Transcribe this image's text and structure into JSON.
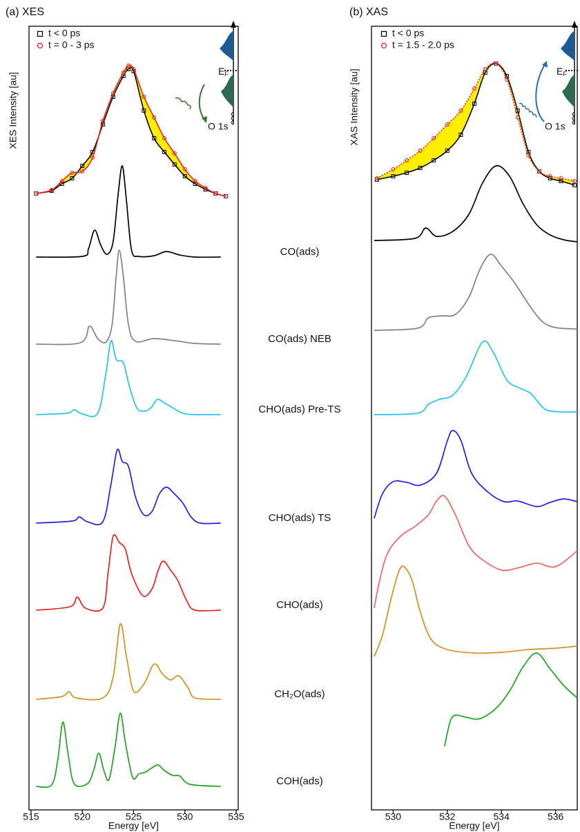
{
  "chart_data": [
    {
      "type": "line",
      "title": "(a) XES",
      "y_label": "XES Intensity [au]",
      "x_label": "Energy [eV]",
      "xlim": [
        514.8,
        535.2
      ],
      "xticks": [
        515,
        520,
        525,
        530,
        535
      ],
      "ylim": [
        10,
        1144
      ],
      "legend": "upper left",
      "highlight_color": "#ffee00",
      "inset": {
        "fermi": "E",
        "fermi_sub": "F",
        "core": "O 1s",
        "arrow_color": "#3f6e3a"
      },
      "series": [
        {
          "name": "t < 0 ps",
          "color": "#000000",
          "marker": "square",
          "x": [
            515.5,
            517,
            518,
            519,
            520,
            521,
            522,
            523,
            524,
            524.5,
            525,
            526,
            527,
            528,
            529,
            530,
            531,
            532,
            533,
            534
          ],
          "values": [
            902,
            906,
            916,
            924,
            942,
            962,
            1002,
            1042,
            1072,
            1082,
            1079,
            1022,
            982,
            962,
            944,
            927,
            916,
            908,
            902,
            898
          ]
        },
        {
          "name": "t = 0 - 3 ps",
          "color": "#e8231f",
          "marker": "circle",
          "x": [
            515.5,
            517,
            518,
            519,
            520,
            521,
            522,
            523,
            524,
            524.5,
            525,
            526,
            527,
            528,
            529,
            530,
            531,
            532,
            533,
            534
          ],
          "values": [
            902,
            907,
            920,
            932,
            934,
            954,
            1007,
            1047,
            1077,
            1087,
            1082,
            1042,
            1012,
            982,
            960,
            937,
            920,
            910,
            902,
            898
          ]
        },
        {
          "name": "CO(ads)",
          "color": "#000000",
          "x": [
            515.5,
            520,
            520.6,
            521.2,
            521.8,
            522.4,
            523,
            523.5,
            523.9,
            524.3,
            524.8,
            525.5,
            527,
            528.2,
            529.5,
            531,
            533.5
          ],
          "values": [
            810,
            811,
            822,
            849,
            827,
            814,
            832,
            902,
            942,
            892,
            820,
            811,
            812,
            818,
            813,
            810,
            810
          ]
        },
        {
          "name": "CO(ads) NEB",
          "color": "#808080",
          "x": [
            515.5,
            519.8,
            520.7,
            521.5,
            522.3,
            522.9,
            523.3,
            523.6,
            524,
            524.5,
            525.2,
            527,
            529,
            531,
            533.5
          ],
          "values": [
            684,
            686,
            710,
            692,
            687,
            712,
            782,
            820,
            782,
            712,
            688,
            692,
            689,
            685,
            684
          ]
        },
        {
          "name": "CHO(ads) Pre-TS",
          "color": "#22c4ef",
          "x": [
            515.5,
            518.5,
            519.2,
            520,
            521.5,
            522.3,
            522.8,
            523.3,
            524,
            524.6,
            525.3,
            526,
            526.7,
            527.3,
            528,
            528.8,
            529.8,
            531,
            533.5
          ],
          "values": [
            582,
            584,
            589,
            583,
            584,
            642,
            689,
            662,
            657,
            622,
            592,
            587,
            592,
            604,
            599,
            592,
            584,
            582,
            582
          ]
        },
        {
          "name": "CHO(ads) TS",
          "color": "#1f1fe6",
          "x": [
            515.5,
            519,
            519.7,
            520.5,
            522,
            522.8,
            523.4,
            523.9,
            524.5,
            525.2,
            526,
            526.8,
            527.5,
            528.2,
            529,
            529.8,
            530.6,
            531.5,
            533.5
          ],
          "values": [
            425,
            428,
            434,
            427,
            427,
            482,
            531,
            514,
            507,
            462,
            437,
            442,
            467,
            477,
            467,
            454,
            434,
            425,
            425
          ]
        },
        {
          "name": "CHO(ads)",
          "color": "#f01d1d",
          "x": [
            515.5,
            518.8,
            519.5,
            520.3,
            522,
            522.5,
            523,
            523.6,
            524.2,
            524.8,
            525.9,
            526.8,
            527.4,
            527.9,
            528.6,
            529.3,
            530.2,
            531,
            533.5
          ],
          "values": [
            299,
            304,
            318,
            302,
            302,
            352,
            406,
            397,
            387,
            352,
            320,
            330,
            357,
            370,
            357,
            342,
            312,
            299,
            299
          ]
        },
        {
          "name": "CH₂O(ads)",
          "color": "#d2901e",
          "x": [
            515.5,
            518,
            518.7,
            519.4,
            522,
            523,
            523.7,
            524.3,
            525,
            526,
            527,
            527.8,
            528.6,
            529.4,
            530.3,
            531,
            533.5
          ],
          "values": [
            170,
            174,
            181,
            172,
            172,
            202,
            279,
            232,
            182,
            192,
            221,
            207,
            198,
            204,
            187,
            172,
            170
          ]
        },
        {
          "name": "COH(ads)",
          "color": "#1fa21f",
          "x": [
            515.5,
            517,
            517.6,
            518.1,
            518.6,
            519.2,
            520.5,
            521.1,
            521.6,
            522.1,
            522.6,
            523.2,
            523.7,
            524.2,
            524.9,
            525.5,
            526.2,
            526.9,
            527.4,
            528,
            528.8,
            529.5,
            530.5,
            533.5
          ],
          "values": [
            44,
            46,
            82,
            137,
            92,
            48,
            48,
            67,
            92,
            67,
            54,
            102,
            150,
            107,
            57,
            62,
            65,
            72,
            75,
            67,
            60,
            59,
            47,
            44
          ]
        }
      ]
    },
    {
      "type": "line",
      "title": "(b) XAS",
      "y_label": "XAS Intensity [au]",
      "x_label": "Energy [eV]",
      "xlim": [
        529.2,
        536.8
      ],
      "xticks": [
        530,
        532,
        534,
        536
      ],
      "ylim": [
        10,
        1144
      ],
      "legend": "upper left",
      "highlight_color": "#ffee00",
      "inset": {
        "fermi": "E",
        "fermi_sub": "F",
        "core": "O 1s",
        "arrow_color": "#2b6db3"
      },
      "series": [
        {
          "name": "t < 0 ps",
          "color": "#000000",
          "marker": "square",
          "x": [
            529.4,
            530,
            530.5,
            531,
            531.5,
            532,
            532.5,
            533,
            533.4,
            533.8,
            534.2,
            534.6,
            535,
            535.4,
            535.8,
            536.2,
            536.7
          ],
          "values": [
            922,
            927,
            932,
            939,
            950,
            964,
            987,
            1032,
            1077,
            1090,
            1072,
            1022,
            962,
            934,
            924,
            920,
            914
          ]
        },
        {
          "name": "t = 1.5 - 2.0 ps",
          "color": "#e8231f",
          "marker": "circle",
          "x": [
            529.4,
            530,
            530.5,
            531,
            531.5,
            532,
            532.5,
            533,
            533.4,
            533.8,
            534.2,
            534.6,
            535,
            535.4,
            535.8,
            536.2,
            536.7
          ],
          "values": [
            924,
            937,
            950,
            964,
            982,
            1002,
            1022,
            1054,
            1082,
            1090,
            1067,
            1012,
            957,
            934,
            927,
            924,
            920
          ]
        },
        {
          "color": "#000000",
          "x": [
            529.3,
            530.8,
            531.2,
            531.6,
            532.2,
            532.8,
            533.3,
            533.8,
            534.3,
            534.8,
            535.3,
            535.8,
            536.3,
            536.8
          ],
          "values": [
            834,
            837,
            852,
            840,
            847,
            872,
            917,
            942,
            927,
            887,
            857,
            842,
            835,
            832
          ]
        },
        {
          "color": "#808080",
          "x": [
            529.3,
            530.9,
            531.3,
            531.8,
            532.3,
            532.8,
            533.2,
            533.6,
            534,
            534.5,
            535,
            535.5,
            536,
            536.8
          ],
          "values": [
            704,
            707,
            722,
            725,
            727,
            752,
            792,
            814,
            797,
            772,
            742,
            717,
            708,
            706
          ]
        },
        {
          "color": "#22c4ef",
          "x": [
            529.3,
            530.9,
            531.3,
            531.7,
            532.2,
            532.7,
            533.3,
            533.7,
            534.2,
            534.7,
            535.1,
            535.6,
            536.2,
            536.8
          ],
          "values": [
            582,
            584,
            597,
            604,
            610,
            637,
            687,
            672,
            632,
            620,
            612,
            590,
            586,
            586
          ]
        },
        {
          "color": "#1f1fe6",
          "x": [
            529.3,
            529.6,
            530,
            530.5,
            531,
            531.6,
            532,
            532.2,
            532.5,
            532.9,
            533.5,
            534.1,
            534.6,
            535.3,
            535.8,
            536.3,
            536.8
          ],
          "values": [
            432,
            467,
            485,
            484,
            480,
            497,
            544,
            559,
            545,
            497,
            470,
            456,
            457,
            449,
            455,
            460,
            456
          ]
        },
        {
          "color": "#f56262",
          "x": [
            529.3,
            529.5,
            529.8,
            530.3,
            530.8,
            531.3,
            531.6,
            531.9,
            532.3,
            532.8,
            533.3,
            534,
            534.6,
            535.3,
            536,
            536.8
          ],
          "values": [
            302,
            342,
            382,
            407,
            420,
            437,
            457,
            464,
            437,
            392,
            372,
            357,
            360,
            367,
            362,
            385
          ]
        },
        {
          "color": "#d2901e",
          "x": [
            529.3,
            529.6,
            529.9,
            530.2,
            530.4,
            530.7,
            531,
            531.4,
            532,
            533,
            534,
            535,
            536,
            536.8
          ],
          "values": [
            232,
            262,
            312,
            354,
            362,
            342,
            297,
            257,
            242,
            237,
            238,
            242,
            244,
            247
          ]
        },
        {
          "color": "#1fa21f",
          "x": [
            531.9,
            532.1,
            532.3,
            532.7,
            533.2,
            533.8,
            534.3,
            534.8,
            535.3,
            535.8,
            536.3,
            536.8
          ],
          "values": [
            102,
            137,
            147,
            144,
            142,
            157,
            182,
            217,
            237,
            214,
            190,
            172
          ]
        }
      ]
    }
  ]
}
